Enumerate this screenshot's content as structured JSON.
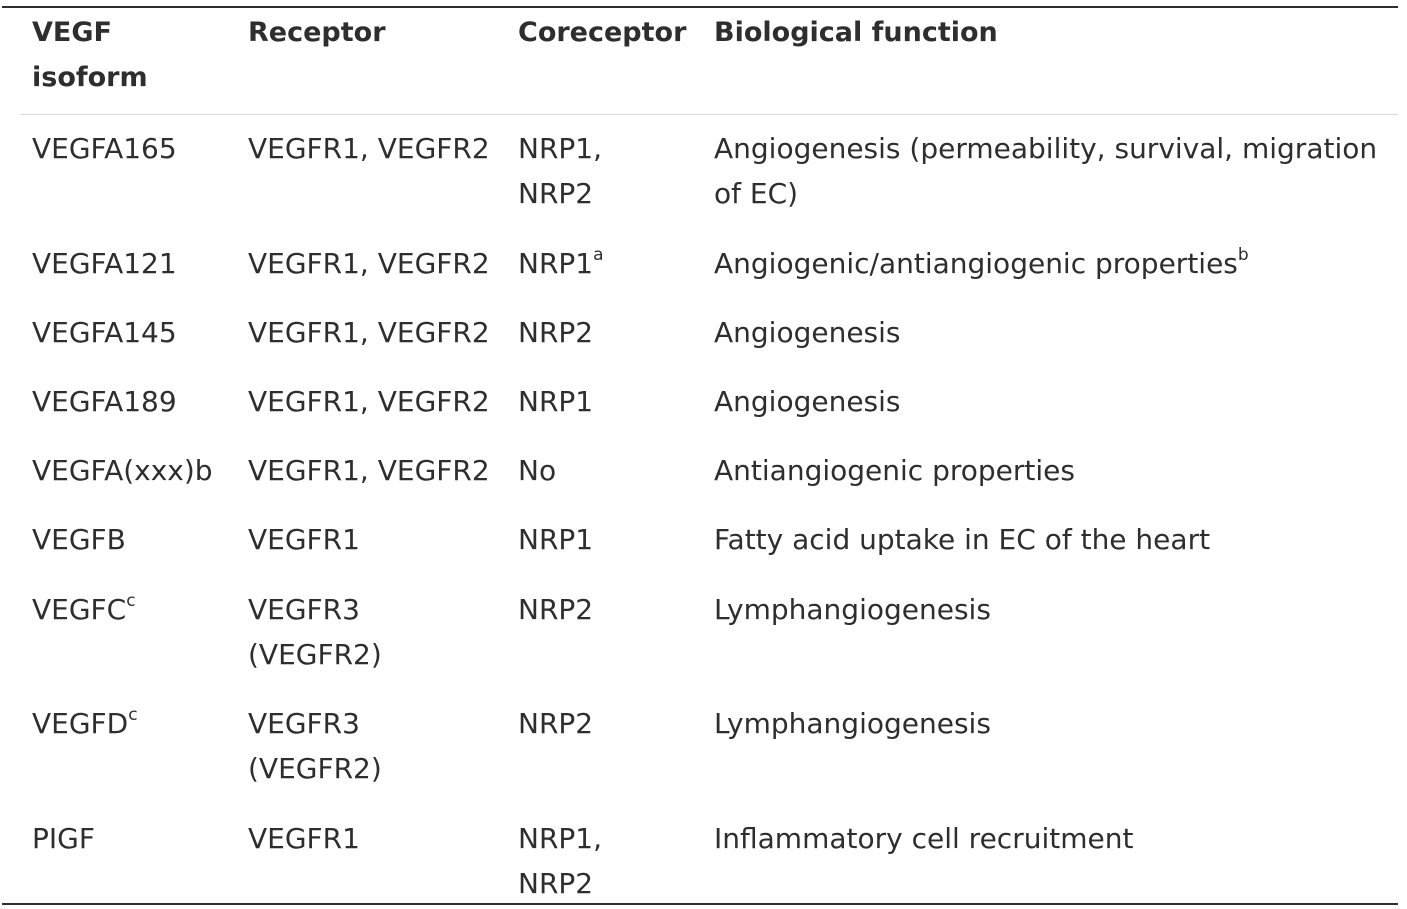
{
  "table": {
    "headers": [
      "VEGF isoform",
      "Receptor",
      "Coreceptor",
      "Biological function"
    ],
    "rows": [
      {
        "isoform": "VEGFA165",
        "isoform_sup": "",
        "receptor": "VEGFR1, VEGFR2",
        "coreceptor": "NRP1, NRP2",
        "coreceptor_sup": "",
        "function": "Angiogenesis (permeability, survival, migration of EC)",
        "function_sup": ""
      },
      {
        "isoform": "VEGFA121",
        "isoform_sup": "",
        "receptor": "VEGFR1, VEGFR2",
        "coreceptor": "NRP1",
        "coreceptor_sup": "a",
        "function": "Angiogenic/antiangiogenic properties",
        "function_sup": "b"
      },
      {
        "isoform": "VEGFA145",
        "isoform_sup": "",
        "receptor": "VEGFR1, VEGFR2",
        "coreceptor": "NRP2",
        "coreceptor_sup": "",
        "function": "Angiogenesis",
        "function_sup": ""
      },
      {
        "isoform": "VEGFA189",
        "isoform_sup": "",
        "receptor": "VEGFR1, VEGFR2",
        "coreceptor": "NRP1",
        "coreceptor_sup": "",
        "function": "Angiogenesis",
        "function_sup": ""
      },
      {
        "isoform": "VEGFA(xxx)b",
        "isoform_sup": "",
        "receptor": "VEGFR1, VEGFR2",
        "coreceptor": "No",
        "coreceptor_sup": "",
        "function": "Antiangiogenic properties",
        "function_sup": ""
      },
      {
        "isoform": "VEGFB",
        "isoform_sup": "",
        "receptor": "VEGFR1",
        "coreceptor": "NRP1",
        "coreceptor_sup": "",
        "function": "Fatty acid uptake in EC of the heart",
        "function_sup": ""
      },
      {
        "isoform": "VEGFC",
        "isoform_sup": "c",
        "receptor": "VEGFR3 (VEGFR2)",
        "coreceptor": "NRP2",
        "coreceptor_sup": "",
        "function": "Lymphangiogenesis",
        "function_sup": ""
      },
      {
        "isoform": "VEGFD",
        "isoform_sup": "c",
        "receptor": "VEGFR3 (VEGFR2)",
        "coreceptor": "NRP2",
        "coreceptor_sup": "",
        "function": "Lymphangiogenesis",
        "function_sup": ""
      },
      {
        "isoform": "PIGF",
        "isoform_sup": "",
        "receptor": "VEGFR1",
        "coreceptor": "NRP1, NRP2",
        "coreceptor_sup": "",
        "function": "Inflammatory cell recruitment",
        "function_sup": ""
      }
    ]
  }
}
